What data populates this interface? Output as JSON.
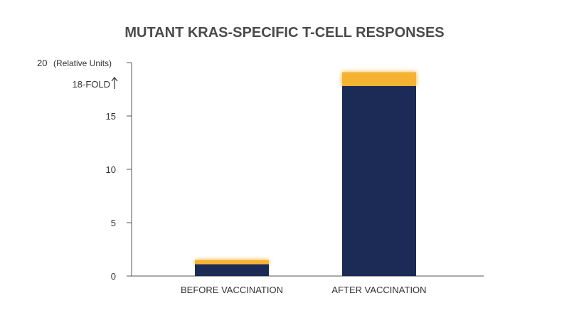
{
  "colors": {
    "base": "#1c2b56",
    "highlight": "#f6b232",
    "axis": "#555555",
    "text": "#333333",
    "title": "#4a4a4a"
  },
  "chart_data": {
    "type": "bar",
    "title": "MUTANT KRAS-SPECIFIC T-CELL RESPONSES",
    "ylabel": "(Relative Units)",
    "ylim": [
      0,
      20
    ],
    "yticks": [
      0,
      5,
      10,
      15,
      20
    ],
    "categories": [
      "BEFORE VACCINATION",
      "AFTER VACCINATION"
    ],
    "series": [
      {
        "values": [
          1.1,
          17.8
        ]
      },
      {
        "values": [
          0.4,
          1.3
        ]
      }
    ],
    "annotation": {
      "text": "18-FOLD",
      "icon": "up-arrow-icon",
      "y": 18
    },
    "grid": false
  }
}
